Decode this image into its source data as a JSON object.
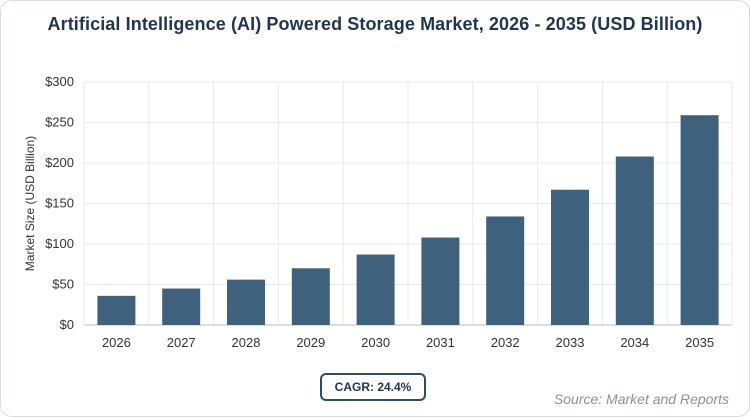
{
  "title": "Artificial Intelligence (AI) Powered Storage Market, 2026 - 2035 (USD Billion)",
  "cagr_label": "CAGR: 24.4%",
  "source_label": "Source: Market and Reports",
  "colors": {
    "bar": "#3e617d",
    "grid": "#e6e9ee",
    "axis": "#b8bec7",
    "text": "#1f3550",
    "tick": "#333333"
  },
  "chart_data": {
    "type": "bar",
    "title": "Artificial Intelligence (AI) Powered Storage Market, 2026 - 2035 (USD Billion)",
    "xlabel": "",
    "ylabel": "Market Size (USD Billion)",
    "categories": [
      "2026",
      "2027",
      "2028",
      "2029",
      "2030",
      "2031",
      "2032",
      "2033",
      "2034",
      "2035"
    ],
    "values": [
      36,
      45,
      56,
      70,
      87,
      108,
      134,
      167,
      208,
      259
    ],
    "ylim": [
      0,
      300
    ],
    "yticks": [
      0,
      50,
      100,
      150,
      200,
      250,
      300
    ],
    "ytick_labels": [
      "$0",
      "$50",
      "$100",
      "$150",
      "$200",
      "$250",
      "$300"
    ],
    "grid": true,
    "legend": "none"
  }
}
